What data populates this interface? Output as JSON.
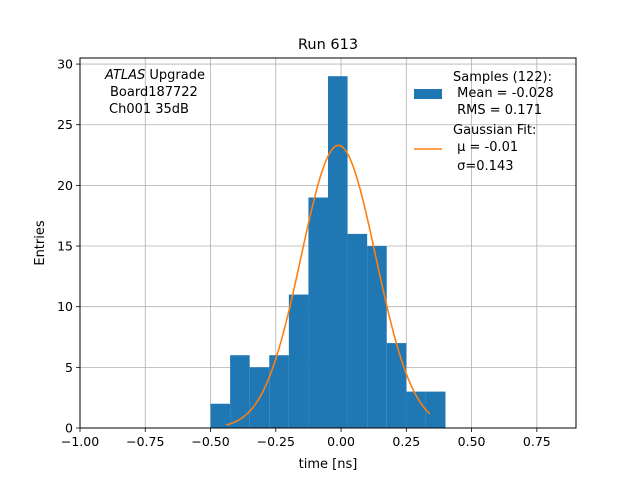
{
  "chart_data": {
    "type": "bar",
    "title": "Run 613",
    "xlabel": "time [ns]",
    "ylabel": "Entries",
    "xlim": [
      -1.0,
      0.9
    ],
    "ylim": [
      0,
      30.5
    ],
    "grid": true,
    "x_ticks": [
      -1.0,
      -0.75,
      -0.5,
      -0.25,
      0.0,
      0.25,
      0.5,
      0.75
    ],
    "x_tick_labels": [
      "−1.00",
      "−0.75",
      "−0.50",
      "−0.25",
      "0.00",
      "0.25",
      "0.50",
      "0.75"
    ],
    "y_ticks": [
      0,
      5,
      10,
      15,
      20,
      25,
      30
    ],
    "y_tick_labels": [
      "0",
      "5",
      "10",
      "15",
      "20",
      "25",
      "30"
    ],
    "annotation": {
      "line1_italic": "ATLAS",
      "line1_rest": " Upgrade",
      "line2": "Board187722",
      "line3": "Ch001 35dB"
    },
    "histogram": {
      "name": "Samples (122):",
      "color": "#1f77b4",
      "bin_edges": [
        -0.5,
        -0.425,
        -0.35,
        -0.275,
        -0.2,
        -0.125,
        -0.05,
        0.025,
        0.1,
        0.175,
        0.25,
        0.325,
        0.4
      ],
      "counts": [
        2,
        6,
        5,
        6,
        11,
        19,
        29,
        16,
        15,
        7,
        3,
        3
      ]
    },
    "fit": {
      "name": "Gaussian Fit:",
      "color": "#ff7f0e",
      "amplitude": 23.3,
      "mu": -0.01,
      "sigma": 0.143,
      "x_start": -0.44,
      "x_end": 0.34
    },
    "legend": {
      "position": "top-right",
      "hist_lines": [
        "Samples (122):",
        " Mean = -0.028",
        " RMS = 0.171"
      ],
      "fit_lines": [
        "Gaussian Fit:",
        " μ = -0.01",
        " σ=0.143"
      ]
    }
  }
}
